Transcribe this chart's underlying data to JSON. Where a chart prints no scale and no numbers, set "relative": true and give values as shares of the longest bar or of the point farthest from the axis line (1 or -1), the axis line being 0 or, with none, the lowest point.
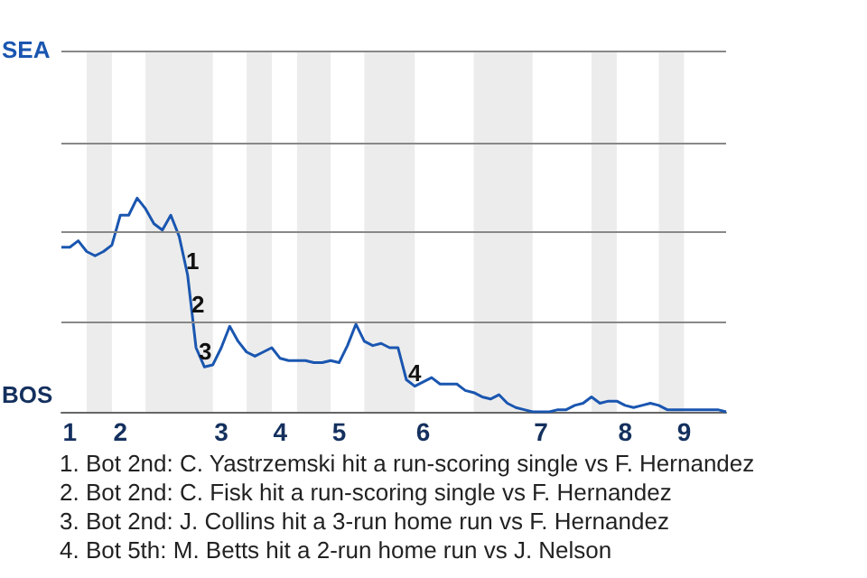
{
  "chart_data": {
    "type": "line",
    "relative": true,
    "categories": [
      null,
      "1",
      null,
      null,
      null,
      null,
      null,
      "2",
      null,
      null,
      null,
      null,
      null,
      null,
      null,
      null,
      null,
      null,
      null,
      "3",
      null,
      null,
      null,
      null,
      null,
      null,
      "4",
      null,
      null,
      null,
      null,
      null,
      null,
      "5",
      null,
      null,
      null,
      null,
      null,
      null,
      null,
      null,
      null,
      "6",
      null,
      null,
      null,
      null,
      null,
      null,
      null,
      null,
      null,
      null,
      null,
      null,
      null,
      "7",
      null,
      null,
      null,
      null,
      null,
      null,
      null,
      null,
      null,
      "8",
      null,
      null,
      null,
      null,
      null,
      null,
      "9",
      null,
      null,
      null,
      null,
      null
    ],
    "series": [
      {
        "color": "#1a56b0",
        "values": [
          0.77,
          0.77,
          0.8,
          0.75,
          0.73,
          0.75,
          0.78,
          0.92,
          0.92,
          1.0,
          0.95,
          0.88,
          0.85,
          0.92,
          0.82,
          0.64,
          0.3,
          0.21,
          0.22,
          0.3,
          0.4,
          0.33,
          0.28,
          0.26,
          0.28,
          0.3,
          0.25,
          0.24,
          0.24,
          0.24,
          0.23,
          0.23,
          0.24,
          0.23,
          0.31,
          0.41,
          0.33,
          0.31,
          0.32,
          0.3,
          0.3,
          0.15,
          0.12,
          0.14,
          0.16,
          0.13,
          0.13,
          0.13,
          0.1,
          0.09,
          0.07,
          0.06,
          0.08,
          0.04,
          0.02,
          0.01,
          0,
          0,
          0,
          0.01,
          0.01,
          0.03,
          0.04,
          0.07,
          0.04,
          0.05,
          0.05,
          0.03,
          0.02,
          0.03,
          0.04,
          0.03,
          0.01,
          0.01,
          0.01,
          0.01,
          0.01,
          0.01,
          0.01,
          0
        ]
      }
    ],
    "marker": "none",
    "line_style": "solid",
    "ref_lines": [
      {
        "axis": "y",
        "value": 0.42,
        "color": "#888888",
        "line_style": "solid"
      },
      {
        "axis": "y",
        "value": 0.84,
        "color": "#888888",
        "line_style": "solid"
      },
      {
        "axis": "y",
        "value": 1.26,
        "color": "#888888",
        "line_style": "solid"
      },
      {
        "axis": "y",
        "value": 1.69,
        "color": "#888888",
        "line_style": "solid"
      }
    ],
    "annotations": [
      "SEA",
      "BOS",
      "1",
      "2",
      "3",
      "4",
      "1. Bot 2nd: C. Yastrzemski hit a run-scoring single vs F. Hernandez",
      "2. Bot 2nd: C. Fisk hit a run-scoring single vs F. Hernandez",
      "3. Bot 2nd: J. Collins hit a 3-run home run vs F. Hernandez",
      "4. Bot 5th: M. Betts hit a 2-run home run vs J. Nelson"
    ]
  }
}
